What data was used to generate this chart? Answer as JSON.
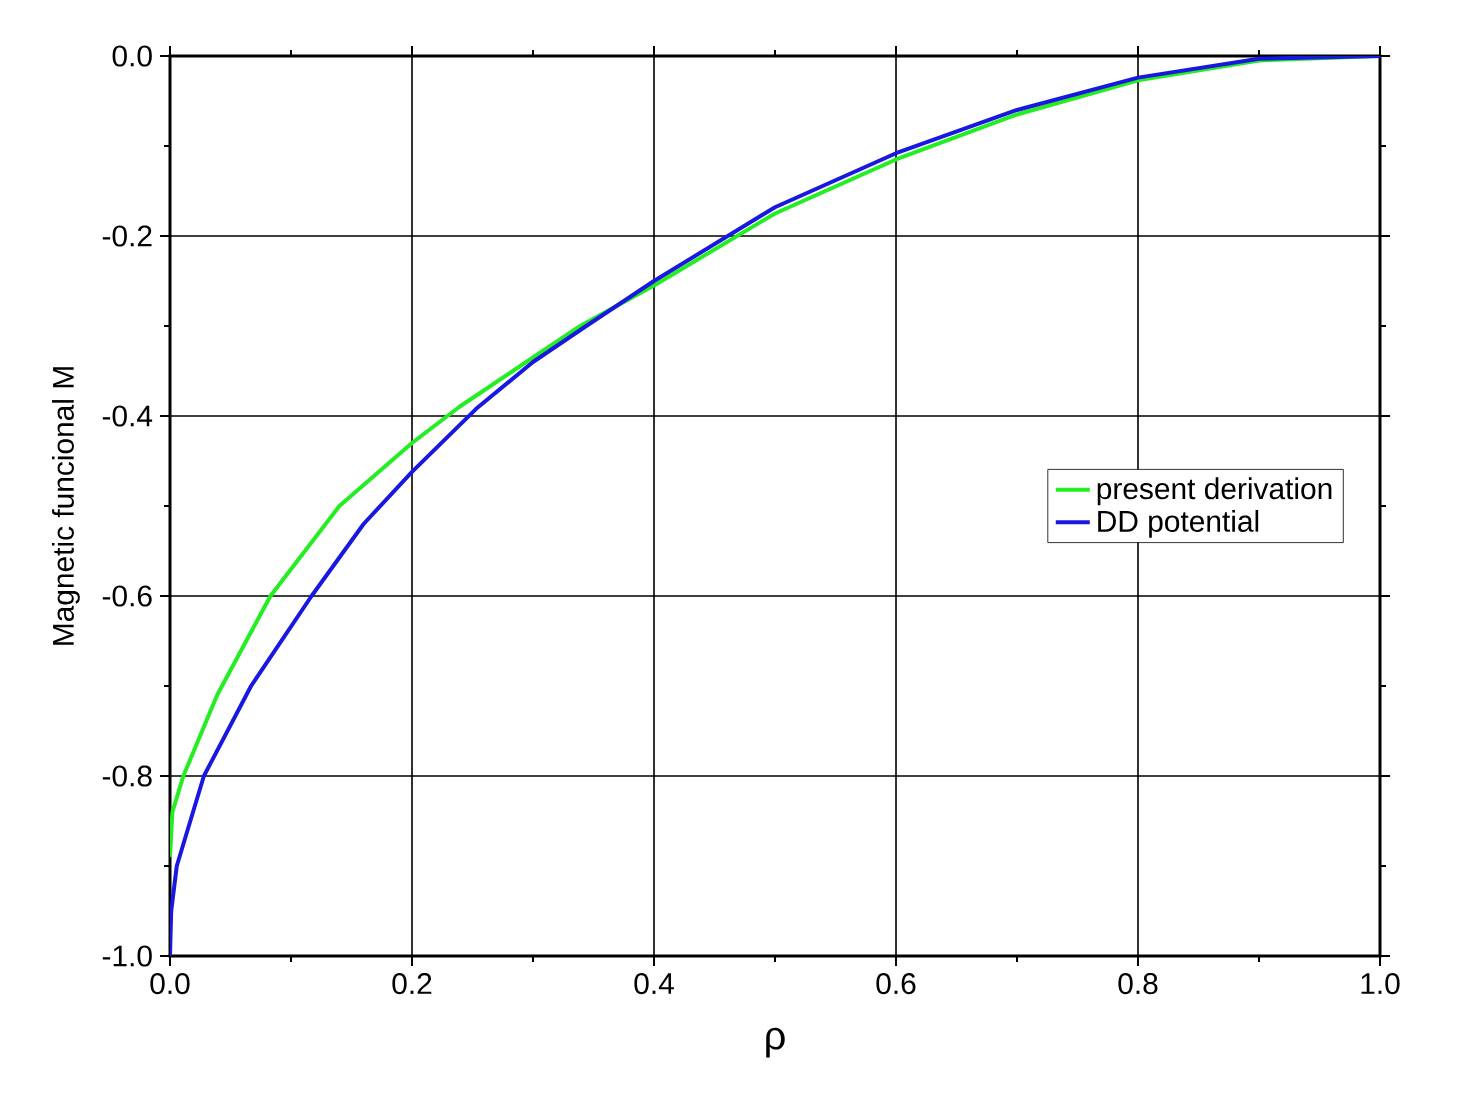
{
  "chart_data": {
    "type": "line",
    "xlabel": "ρ",
    "ylabel": "Magnetic funcional M",
    "xlim": [
      0,
      1
    ],
    "ylim": [
      -1,
      0
    ],
    "xticks": [
      {
        "value": 0,
        "label": "0.0"
      },
      {
        "value": 0.2,
        "label": "0.2"
      },
      {
        "value": 0.4,
        "label": "0.4"
      },
      {
        "value": 0.6,
        "label": "0.6"
      },
      {
        "value": 0.8,
        "label": "0.8"
      },
      {
        "value": 1,
        "label": "1.0"
      }
    ],
    "yticks": [
      {
        "value": -1,
        "label": "-1.0"
      },
      {
        "value": -0.8,
        "label": "-0.8"
      },
      {
        "value": -0.6,
        "label": "-0.6"
      },
      {
        "value": -0.4,
        "label": "-0.4"
      },
      {
        "value": -0.2,
        "label": "-0.2"
      },
      {
        "value": 0,
        "label": "0.0"
      }
    ],
    "grid": true,
    "legend": "right",
    "marker": "none",
    "line_style": "solid",
    "series": [
      {
        "name": "present derivation",
        "color": "#22ee22",
        "x": [
          0,
          0.002,
          0.011,
          0.039,
          0.083,
          0.14,
          0.2,
          0.239,
          0.3,
          0.339,
          0.4,
          0.5,
          0.6,
          0.7,
          0.8,
          0.9,
          1.0
        ],
        "values": [
          -0.89,
          -0.84,
          -0.8,
          -0.71,
          -0.6,
          -0.5,
          -0.43,
          -0.39,
          -0.335,
          -0.3,
          -0.255,
          -0.175,
          -0.115,
          -0.065,
          -0.027,
          -0.005,
          0
        ]
      },
      {
        "name": "DD potential",
        "color": "#1818e0",
        "x": [
          0,
          0.001,
          0.0056,
          0.028,
          0.067,
          0.117,
          0.16,
          0.2,
          0.253,
          0.3,
          0.344,
          0.4,
          0.5,
          0.6,
          0.7,
          0.8,
          0.9,
          1.0
        ],
        "values": [
          -1,
          -0.95,
          -0.9,
          -0.8,
          -0.7,
          -0.6,
          -0.52,
          -0.462,
          -0.392,
          -0.34,
          -0.3,
          -0.25,
          -0.168,
          -0.108,
          -0.06,
          -0.024,
          -0.003,
          0
        ]
      }
    ]
  }
}
